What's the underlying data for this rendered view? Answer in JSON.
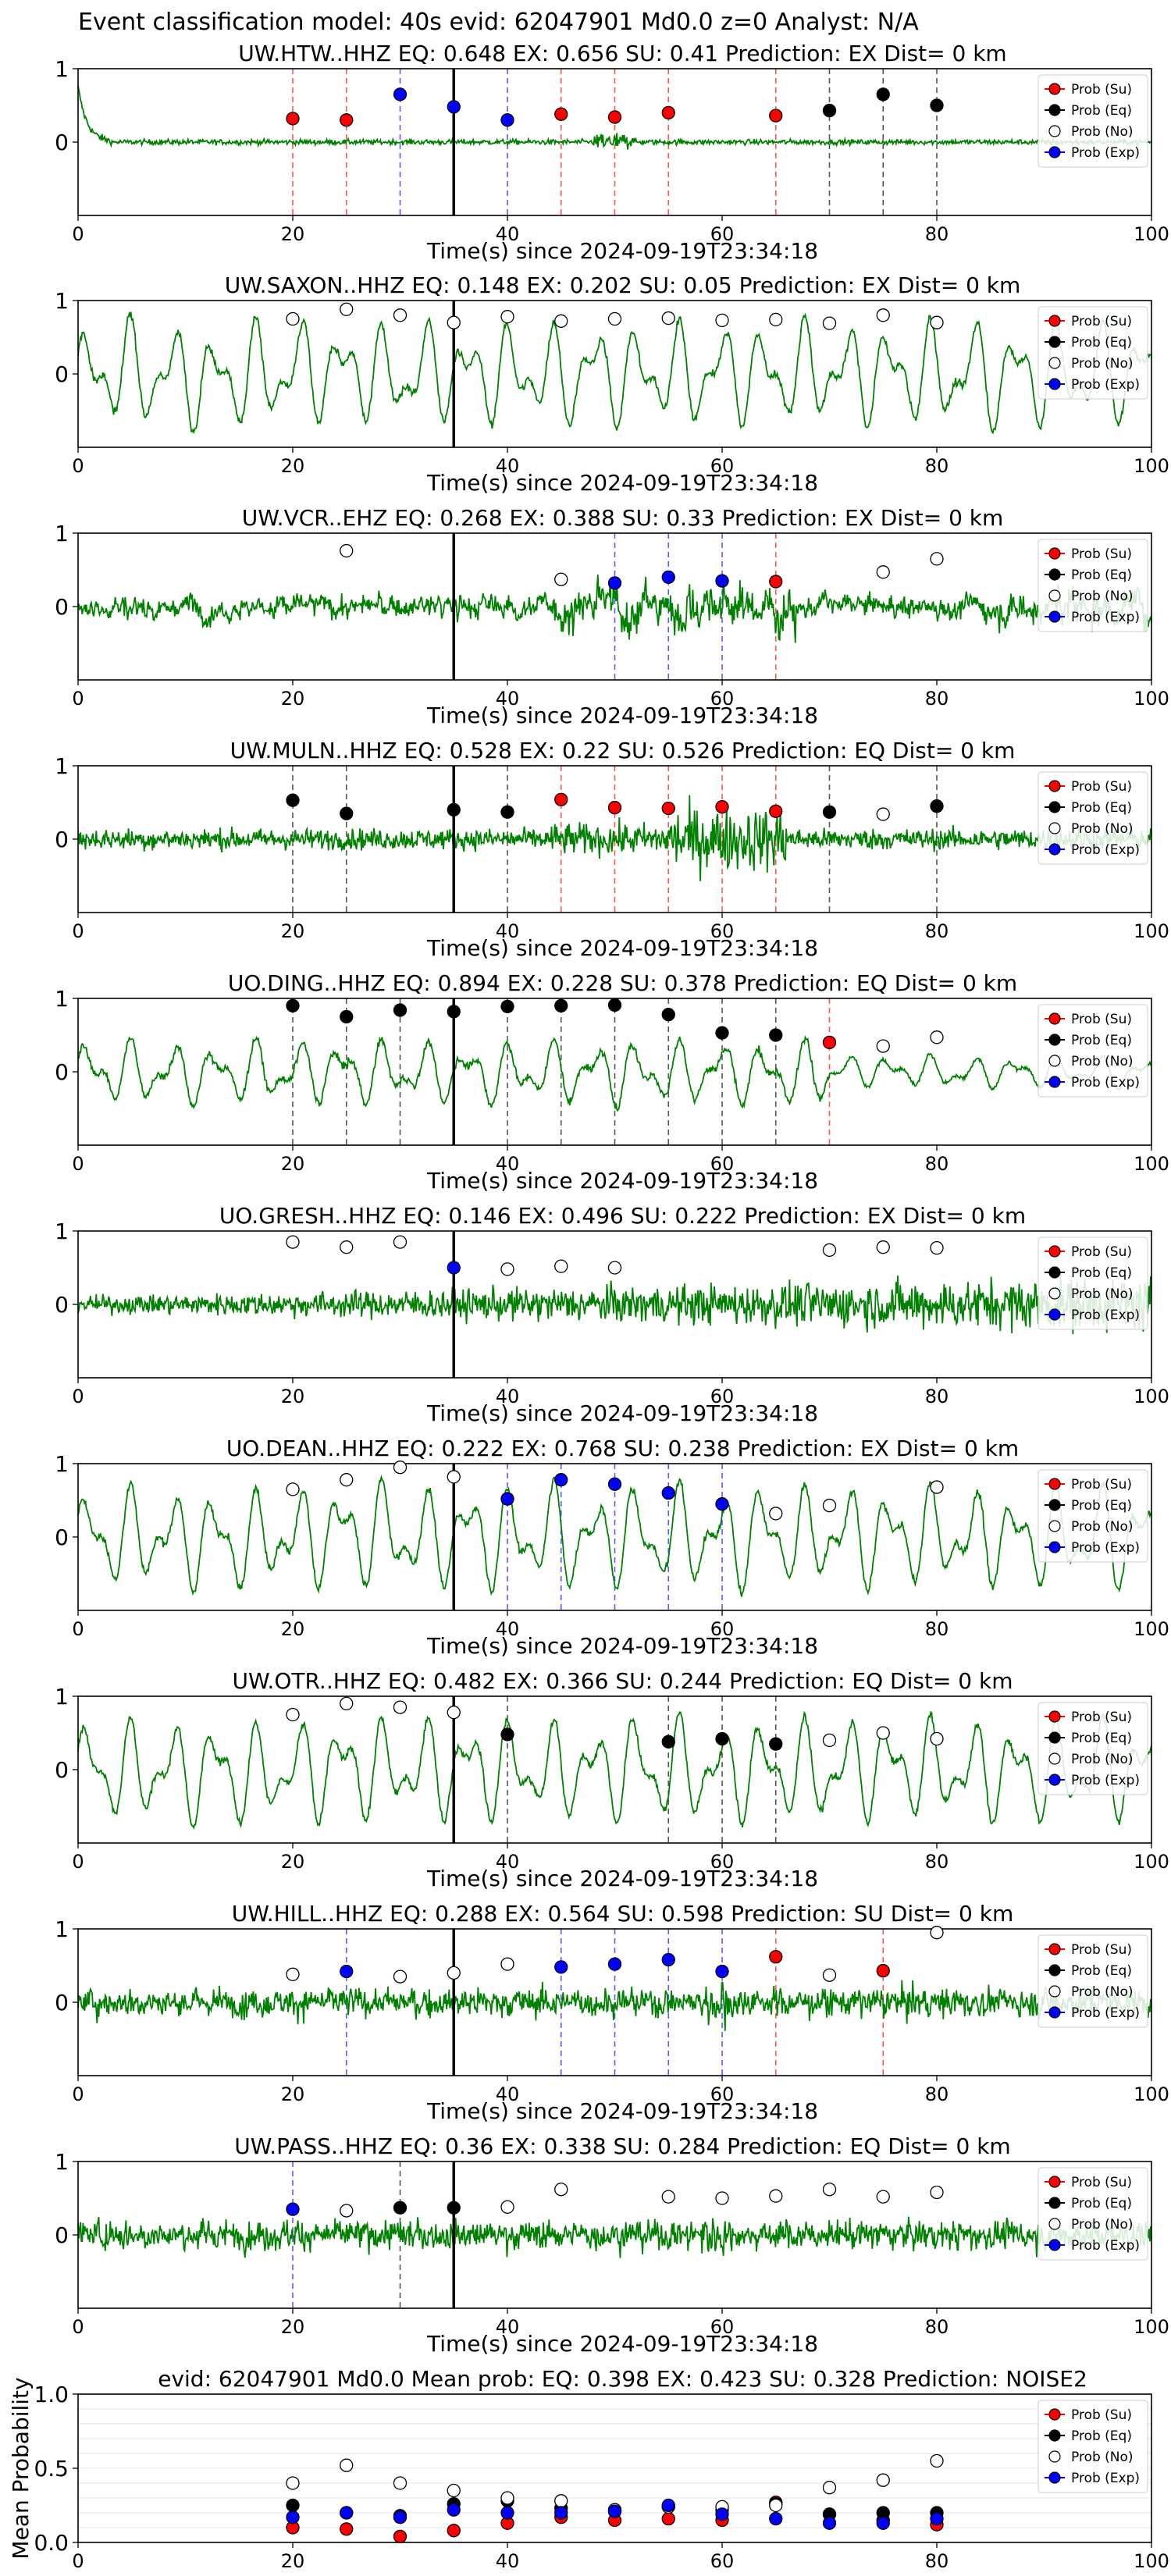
{
  "figure": {
    "suptitle": "Event classification model: 40s evid: 62047901 Md0.0 z=0 Analyst: N/A",
    "xlabel": "Time(s) since 2024-09-19T23:34:18"
  },
  "legend": [
    "Prob (Su)",
    "Prob (Eq)",
    "Prob (No)",
    "Prob (Exp)"
  ],
  "colors": {
    "su": "#ff0000",
    "eq": "#000000",
    "no": "#ffffff",
    "exp": "#0000ff",
    "trace": "#008000"
  },
  "chart_data": [
    {
      "type": "line",
      "station": "UW.HTW..HHZ",
      "title": "UW.HTW..HHZ   EQ: 0.648   EX: 0.656   SU: 0.41    Prediction: EX     Dist= 0 km",
      "xlim": [
        0,
        100
      ],
      "xticks": [
        0,
        20,
        40,
        60,
        80,
        100
      ],
      "yticks": [
        0,
        1
      ],
      "vline": 35,
      "waveform": "impulsive-then-quiet",
      "series": [
        {
          "name": "Prob (Su)",
          "points": [
            [
              20,
              0.32
            ],
            [
              25,
              0.3
            ],
            [
              45,
              0.38
            ],
            [
              50,
              0.34
            ],
            [
              55,
              0.4
            ],
            [
              65,
              0.36
            ]
          ]
        },
        {
          "name": "Prob (Eq)",
          "points": [
            [
              70,
              0.43
            ],
            [
              75,
              0.65
            ],
            [
              80,
              0.5
            ]
          ]
        },
        {
          "name": "Prob (No)",
          "points": []
        },
        {
          "name": "Prob (Exp)",
          "points": [
            [
              30,
              0.65
            ],
            [
              35,
              0.48
            ],
            [
              40,
              0.3
            ]
          ]
        }
      ]
    },
    {
      "type": "line",
      "station": "UW.SAXON..HHZ",
      "title": "UW.SAXON..HHZ   EQ: 0.148  EX: 0.202  SU: 0.05   Prediction: EX    Dist= 0 km",
      "xlim": [
        0,
        100
      ],
      "xticks": [
        0,
        20,
        40,
        60,
        80,
        100
      ],
      "yticks": [
        0,
        1
      ],
      "vline": 35,
      "waveform": "smooth-large",
      "series": [
        {
          "name": "Prob (Su)",
          "points": []
        },
        {
          "name": "Prob (Eq)",
          "points": []
        },
        {
          "name": "Prob (No)",
          "points": [
            [
              20,
              0.75
            ],
            [
              25,
              0.88
            ],
            [
              30,
              0.8
            ],
            [
              35,
              0.7
            ],
            [
              40,
              0.78
            ],
            [
              45,
              0.72
            ],
            [
              50,
              0.75
            ],
            [
              55,
              0.76
            ],
            [
              60,
              0.73
            ],
            [
              65,
              0.74
            ],
            [
              70,
              0.69
            ],
            [
              75,
              0.8
            ],
            [
              80,
              0.7
            ]
          ]
        },
        {
          "name": "Prob (Exp)",
          "points": []
        }
      ]
    },
    {
      "type": "line",
      "station": "UW.VCR..EHZ",
      "title": "UW.VCR..EHZ   EQ: 0.268  EX: 0.388  SU: 0.33   Prediction: EX    Dist= 0 km",
      "xlim": [
        0,
        100
      ],
      "xticks": [
        0,
        20,
        40,
        60,
        80,
        100
      ],
      "yticks": [
        0,
        1
      ],
      "vline": 35,
      "waveform": "mixed-burst",
      "series": [
        {
          "name": "Prob (Su)",
          "points": [
            [
              65,
              0.34
            ]
          ]
        },
        {
          "name": "Prob (Eq)",
          "points": []
        },
        {
          "name": "Prob (No)",
          "points": [
            [
              25,
              0.76
            ],
            [
              45,
              0.37
            ],
            [
              75,
              0.47
            ],
            [
              80,
              0.65
            ]
          ]
        },
        {
          "name": "Prob (Exp)",
          "points": [
            [
              50,
              0.32
            ],
            [
              55,
              0.4
            ],
            [
              60,
              0.35
            ]
          ]
        }
      ]
    },
    {
      "type": "line",
      "station": "UW.MULN..HHZ",
      "title": "UW.MULN..HHZ   EQ: 0.528  EX: 0.22  SU: 0.526   Prediction: EQ    Dist= 0 km",
      "xlim": [
        0,
        100
      ],
      "xticks": [
        0,
        20,
        40,
        60,
        80,
        100
      ],
      "yticks": [
        0,
        1
      ],
      "vline": 35,
      "waveform": "noisy-burst",
      "series": [
        {
          "name": "Prob (Su)",
          "points": [
            [
              45,
              0.54
            ],
            [
              50,
              0.43
            ],
            [
              55,
              0.42
            ],
            [
              60,
              0.44
            ],
            [
              65,
              0.38
            ]
          ]
        },
        {
          "name": "Prob (Eq)",
          "points": [
            [
              20,
              0.53
            ],
            [
              25,
              0.35
            ],
            [
              35,
              0.4
            ],
            [
              40,
              0.37
            ],
            [
              70,
              0.37
            ],
            [
              80,
              0.45
            ]
          ]
        },
        {
          "name": "Prob (No)",
          "points": [
            [
              75,
              0.34
            ]
          ]
        },
        {
          "name": "Prob (Exp)",
          "points": []
        }
      ]
    },
    {
      "type": "line",
      "station": "UO.DING..HHZ",
      "title": "UO.DING..HHZ   EQ: 0.894  EX: 0.228  SU: 0.378   Prediction: EQ    Dist= 0 km",
      "xlim": [
        0,
        100
      ],
      "xticks": [
        0,
        20,
        40,
        60,
        80,
        100
      ],
      "yticks": [
        0,
        1
      ],
      "vline": 35,
      "waveform": "smooth-medium",
      "series": [
        {
          "name": "Prob (Su)",
          "points": [
            [
              70,
              0.4
            ]
          ]
        },
        {
          "name": "Prob (Eq)",
          "points": [
            [
              20,
              0.9
            ],
            [
              25,
              0.75
            ],
            [
              30,
              0.84
            ],
            [
              35,
              0.82
            ],
            [
              40,
              0.89
            ],
            [
              45,
              0.9
            ],
            [
              50,
              0.91
            ],
            [
              55,
              0.78
            ],
            [
              60,
              0.53
            ],
            [
              65,
              0.5
            ]
          ]
        },
        {
          "name": "Prob (No)",
          "points": [
            [
              75,
              0.35
            ],
            [
              80,
              0.47
            ]
          ]
        },
        {
          "name": "Prob (Exp)",
          "points": []
        }
      ]
    },
    {
      "type": "line",
      "station": "UO.GRESH..HHZ",
      "title": "UO.GRESH..HHZ   EQ: 0.146  EX: 0.496  SU: 0.222   Prediction: EX    Dist= 0 km",
      "xlim": [
        0,
        100
      ],
      "xticks": [
        0,
        20,
        40,
        60,
        80,
        100
      ],
      "yticks": [
        0,
        1
      ],
      "vline": 35,
      "waveform": "noisy-growing",
      "series": [
        {
          "name": "Prob (Su)",
          "points": []
        },
        {
          "name": "Prob (Eq)",
          "points": []
        },
        {
          "name": "Prob (No)",
          "points": [
            [
              20,
              0.85
            ],
            [
              25,
              0.78
            ],
            [
              30,
              0.85
            ],
            [
              40,
              0.48
            ],
            [
              45,
              0.52
            ],
            [
              50,
              0.5
            ],
            [
              70,
              0.74
            ],
            [
              75,
              0.78
            ],
            [
              80,
              0.77
            ]
          ]
        },
        {
          "name": "Prob (Exp)",
          "points": [
            [
              35,
              0.5
            ]
          ]
        }
      ]
    },
    {
      "type": "line",
      "station": "UO.DEAN..HHZ",
      "title": "UO.DEAN..HHZ   EQ: 0.222  EX: 0.768  SU: 0.238   Prediction: EX    Dist= 0 km",
      "xlim": [
        0,
        100
      ],
      "xticks": [
        0,
        20,
        40,
        60,
        80,
        100
      ],
      "yticks": [
        0,
        1
      ],
      "vline": 35,
      "waveform": "smooth-large",
      "series": [
        {
          "name": "Prob (Su)",
          "points": []
        },
        {
          "name": "Prob (Eq)",
          "points": []
        },
        {
          "name": "Prob (No)",
          "points": [
            [
              20,
              0.65
            ],
            [
              25,
              0.78
            ],
            [
              30,
              0.95
            ],
            [
              35,
              0.82
            ],
            [
              65,
              0.32
            ],
            [
              70,
              0.43
            ],
            [
              80,
              0.68
            ]
          ]
        },
        {
          "name": "Prob (Exp)",
          "points": [
            [
              40,
              0.52
            ],
            [
              45,
              0.78
            ],
            [
              50,
              0.72
            ],
            [
              55,
              0.6
            ],
            [
              60,
              0.45
            ]
          ]
        }
      ]
    },
    {
      "type": "line",
      "station": "UW.OTR..HHZ",
      "title": "UW.OTR..HHZ   EQ: 0.482  EX: 0.366  SU: 0.244   Prediction: EQ    Dist= 0 km",
      "xlim": [
        0,
        100
      ],
      "xticks": [
        0,
        20,
        40,
        60,
        80,
        100
      ],
      "yticks": [
        0,
        1
      ],
      "vline": 35,
      "waveform": "smooth-large",
      "series": [
        {
          "name": "Prob (Su)",
          "points": []
        },
        {
          "name": "Prob (Eq)",
          "points": [
            [
              40,
              0.48
            ],
            [
              55,
              0.38
            ],
            [
              60,
              0.42
            ],
            [
              65,
              0.35
            ]
          ]
        },
        {
          "name": "Prob (No)",
          "points": [
            [
              20,
              0.75
            ],
            [
              25,
              0.9
            ],
            [
              30,
              0.85
            ],
            [
              35,
              0.78
            ],
            [
              70,
              0.4
            ],
            [
              75,
              0.5
            ],
            [
              80,
              0.42
            ]
          ]
        },
        {
          "name": "Prob (Exp)",
          "points": []
        }
      ]
    },
    {
      "type": "line",
      "station": "UW.HILL..HHZ",
      "title": "UW.HILL..HHZ   EQ: 0.288  EX: 0.564  SU: 0.598   Prediction: SU    Dist= 0 km",
      "xlim": [
        0,
        100
      ],
      "xticks": [
        0,
        20,
        40,
        60,
        80,
        100
      ],
      "yticks": [
        0,
        1
      ],
      "vline": 35,
      "waveform": "noisy-uniform",
      "series": [
        {
          "name": "Prob (Su)",
          "points": [
            [
              65,
              0.62
            ],
            [
              75,
              0.43
            ]
          ]
        },
        {
          "name": "Prob (Eq)",
          "points": []
        },
        {
          "name": "Prob (No)",
          "points": [
            [
              20,
              0.38
            ],
            [
              30,
              0.35
            ],
            [
              35,
              0.4
            ],
            [
              40,
              0.52
            ],
            [
              70,
              0.37
            ],
            [
              80,
              0.95
            ]
          ]
        },
        {
          "name": "Prob (Exp)",
          "points": [
            [
              25,
              0.42
            ],
            [
              45,
              0.48
            ],
            [
              50,
              0.52
            ],
            [
              55,
              0.58
            ],
            [
              60,
              0.42
            ]
          ]
        }
      ]
    },
    {
      "type": "line",
      "station": "UW.PASS..HHZ",
      "title": "UW.PASS..HHZ   EQ: 0.36  EX: 0.338  SU: 0.284   Prediction: EQ    Dist= 0 km",
      "xlim": [
        0,
        100
      ],
      "xticks": [
        0,
        20,
        40,
        60,
        80,
        100
      ],
      "yticks": [
        0,
        1
      ],
      "vline": 35,
      "waveform": "noisy-uniform",
      "series": [
        {
          "name": "Prob (Su)",
          "points": []
        },
        {
          "name": "Prob (Eq)",
          "points": [
            [
              30,
              0.37
            ],
            [
              35,
              0.37
            ]
          ]
        },
        {
          "name": "Prob (No)",
          "points": [
            [
              25,
              0.33
            ],
            [
              40,
              0.38
            ],
            [
              45,
              0.62
            ],
            [
              55,
              0.52
            ],
            [
              60,
              0.5
            ],
            [
              65,
              0.53
            ],
            [
              70,
              0.62
            ],
            [
              75,
              0.52
            ],
            [
              80,
              0.58
            ]
          ]
        },
        {
          "name": "Prob (Exp)",
          "points": [
            [
              20,
              0.35
            ]
          ]
        }
      ]
    },
    {
      "type": "scatter",
      "station": "mean",
      "title": "evid: 62047901  Md0.0   Mean prob:   EQ: 0.398  EX: 0.423  SU: 0.328   Prediction: NOISE2",
      "ylabel": "Mean Probability",
      "xlim": [
        0,
        100
      ],
      "ylim": [
        0,
        1
      ],
      "xticks": [
        0,
        20,
        40,
        60,
        80,
        100
      ],
      "yticks": [
        0.0,
        0.5,
        1.0
      ],
      "series": [
        {
          "name": "Prob (Su)",
          "points": [
            [
              20,
              0.1
            ],
            [
              25,
              0.09
            ],
            [
              30,
              0.04
            ],
            [
              35,
              0.08
            ],
            [
              40,
              0.13
            ],
            [
              45,
              0.17
            ],
            [
              50,
              0.15
            ],
            [
              55,
              0.16
            ],
            [
              60,
              0.15
            ],
            [
              65,
              0.27
            ],
            [
              70,
              0.19
            ],
            [
              75,
              0.15
            ],
            [
              80,
              0.12
            ]
          ]
        },
        {
          "name": "Prob (Eq)",
          "points": [
            [
              20,
              0.25
            ],
            [
              25,
              0.2
            ],
            [
              30,
              0.18
            ],
            [
              35,
              0.26
            ],
            [
              40,
              0.28
            ],
            [
              45,
              0.23
            ],
            [
              50,
              0.21
            ],
            [
              55,
              0.24
            ],
            [
              60,
              0.22
            ],
            [
              65,
              0.26
            ],
            [
              70,
              0.19
            ],
            [
              75,
              0.2
            ],
            [
              80,
              0.2
            ]
          ]
        },
        {
          "name": "Prob (No)",
          "points": [
            [
              20,
              0.4
            ],
            [
              25,
              0.52
            ],
            [
              30,
              0.4
            ],
            [
              35,
              0.35
            ],
            [
              40,
              0.3
            ],
            [
              45,
              0.28
            ],
            [
              50,
              0.22
            ],
            [
              55,
              0.24
            ],
            [
              60,
              0.24
            ],
            [
              65,
              0.25
            ],
            [
              70,
              0.37
            ],
            [
              75,
              0.42
            ],
            [
              80,
              0.55
            ]
          ]
        },
        {
          "name": "Prob (Exp)",
          "points": [
            [
              20,
              0.17
            ],
            [
              25,
              0.2
            ],
            [
              30,
              0.17
            ],
            [
              35,
              0.22
            ],
            [
              40,
              0.2
            ],
            [
              45,
              0.2
            ],
            [
              50,
              0.21
            ],
            [
              55,
              0.25
            ],
            [
              60,
              0.19
            ],
            [
              65,
              0.16
            ],
            [
              70,
              0.13
            ],
            [
              75,
              0.13
            ],
            [
              80,
              0.16
            ]
          ]
        }
      ]
    }
  ]
}
